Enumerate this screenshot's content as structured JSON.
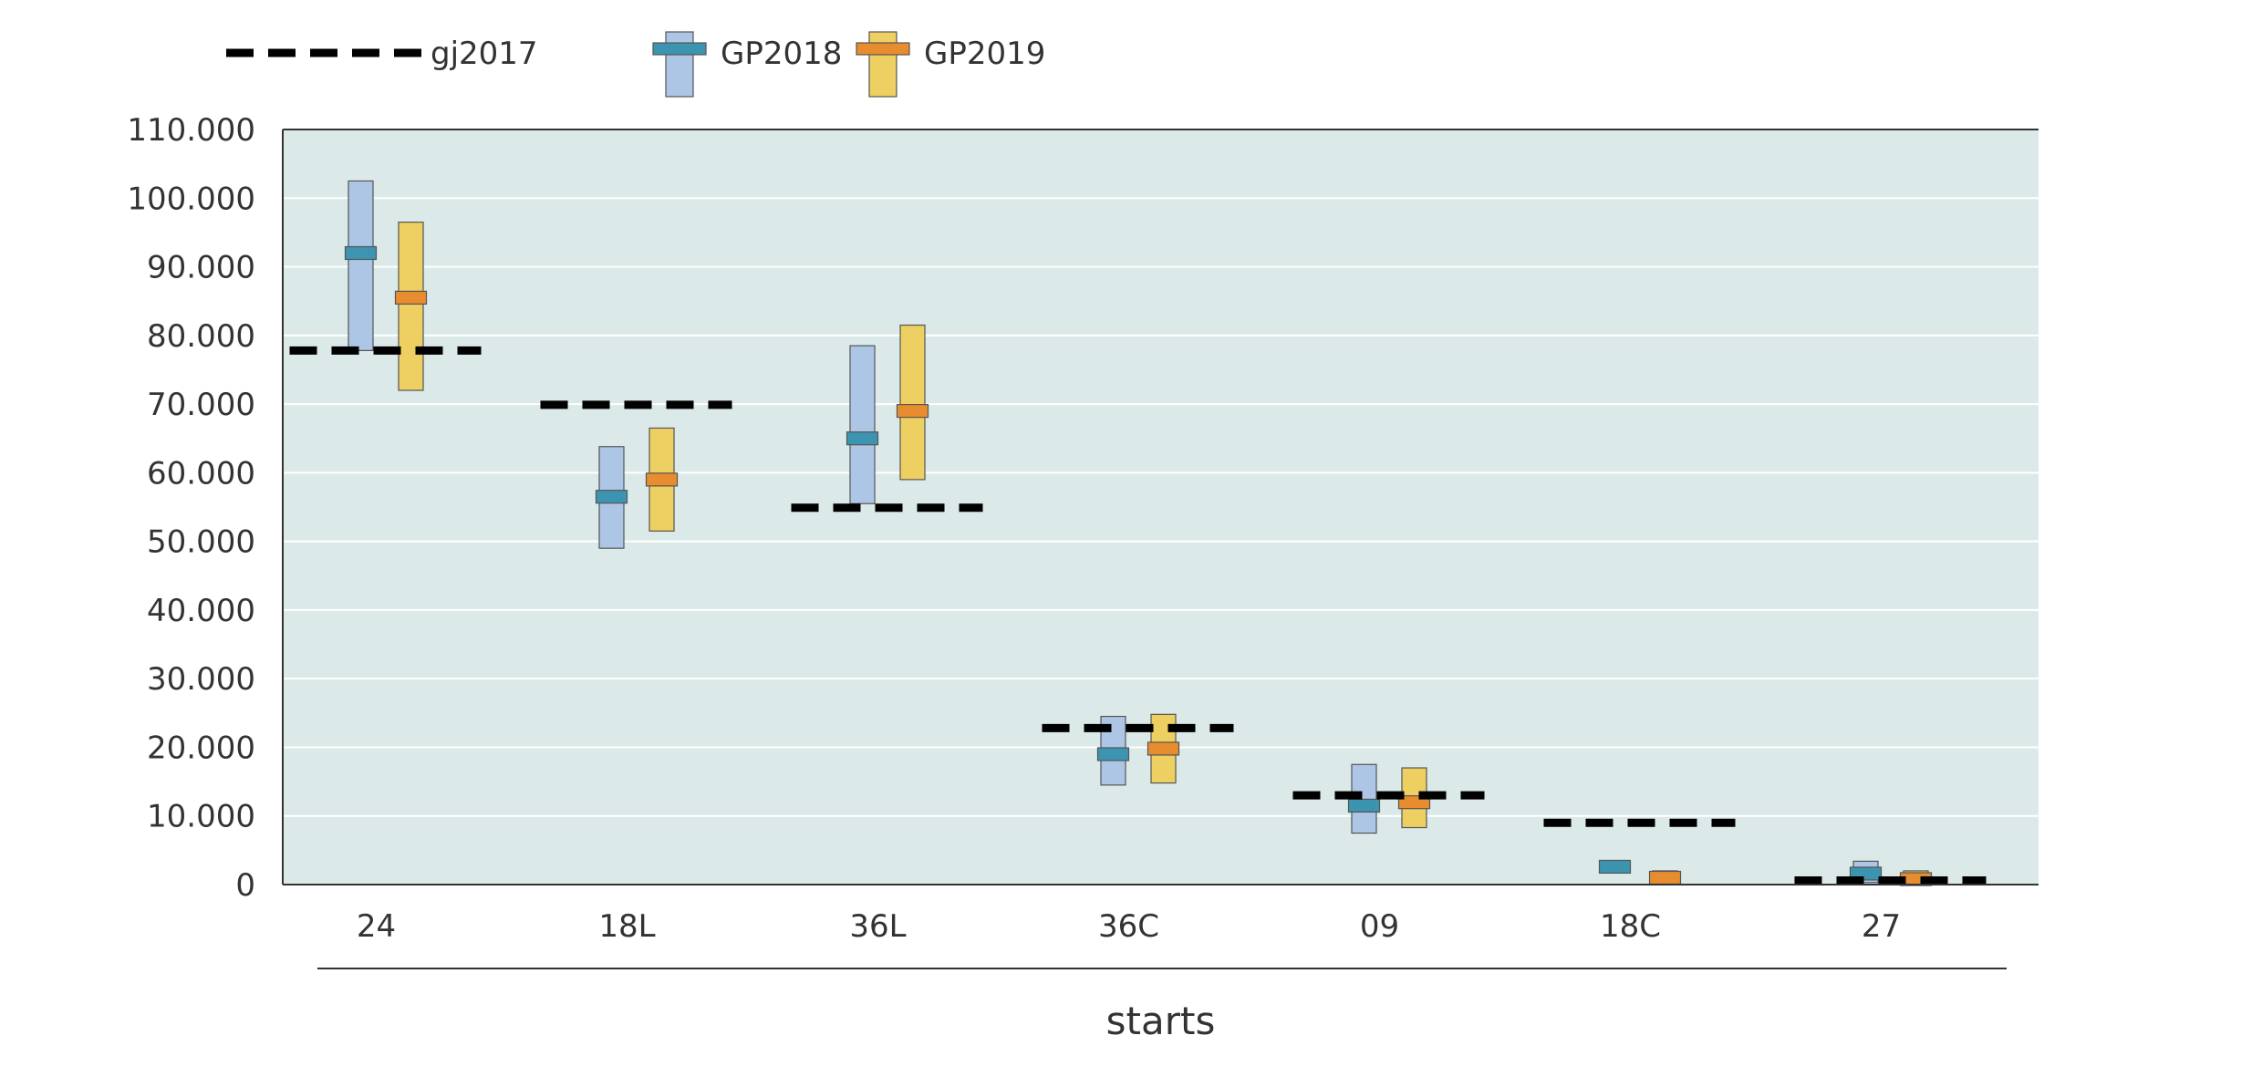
{
  "chart_data": {
    "type": "box-range",
    "title": "",
    "xlabel": "starts",
    "ylabel": "",
    "categories": [
      "24",
      "18L",
      "36L",
      "36C",
      "09",
      "18C",
      "27"
    ],
    "ylim": [
      0,
      110000
    ],
    "yticks": [
      0,
      10000,
      20000,
      30000,
      40000,
      50000,
      60000,
      70000,
      80000,
      90000,
      100000,
      110000
    ],
    "ytick_labels": [
      "0",
      "10.000",
      "20.000",
      "30.000",
      "40.000",
      "50.000",
      "60.000",
      "70.000",
      "80.000",
      "90.000",
      "100.000",
      "110.000"
    ],
    "grid": true,
    "legend": "top-left",
    "reference": {
      "name": "gj2017",
      "color": "#000000",
      "values": [
        77800,
        69900,
        54900,
        22800,
        13000,
        9000,
        600
      ]
    },
    "series": [
      {
        "name": "GP2018",
        "box_color": "#aec6e6",
        "marker_color": "#3c94b0",
        "low": [
          77800,
          49000,
          55500,
          14500,
          7500,
          2800,
          300
        ],
        "mid": [
          92000,
          56500,
          65000,
          19000,
          11500,
          2600,
          1600
        ],
        "high": [
          102500,
          63800,
          78500,
          24500,
          17500,
          3500,
          3400
        ]
      },
      {
        "name": "GP2019",
        "box_color": "#eecf61",
        "marker_color": "#e88c30",
        "low": [
          72000,
          51500,
          59000,
          14800,
          8300,
          0,
          0
        ],
        "mid": [
          85500,
          59000,
          69000,
          19800,
          12000,
          1000,
          800
        ],
        "high": [
          96500,
          66500,
          81500,
          24800,
          17000,
          2000,
          2000
        ]
      }
    ]
  }
}
